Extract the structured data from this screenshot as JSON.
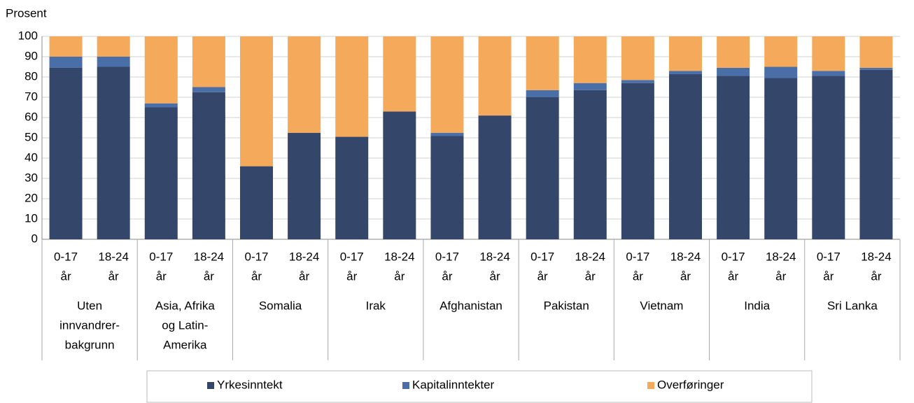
{
  "chart_data": {
    "type": "stacked_bar",
    "y_axis_label": "Prosent",
    "categories": [
      [
        "0-17",
        "år"
      ],
      [
        "18-24",
        "år"
      ],
      [
        "0-17",
        "år"
      ],
      [
        "18-24",
        "år"
      ],
      [
        "0-17",
        "år"
      ],
      [
        "18-24",
        "år"
      ],
      [
        "0-17",
        "år"
      ],
      [
        "18-24",
        "år"
      ],
      [
        "0-17",
        "år"
      ],
      [
        "18-24",
        "år"
      ],
      [
        "0-17",
        "år"
      ],
      [
        "18-24",
        "år"
      ],
      [
        "0-17",
        "år"
      ],
      [
        "18-24",
        "år"
      ],
      [
        "0-17",
        "år"
      ],
      [
        "18-24",
        "år"
      ],
      [
        "0-17",
        "år"
      ],
      [
        "18-24",
        "år"
      ]
    ],
    "groups": [
      [
        "Uten",
        "innvandrer-",
        "bakgrunn"
      ],
      [
        "Asia, Afrika",
        "og Latin-",
        "Amerika"
      ],
      [
        "Somalia"
      ],
      [
        "Irak"
      ],
      [
        "Afghanistan"
      ],
      [
        "Pakistan"
      ],
      [
        "Vietnam"
      ],
      [
        "India"
      ],
      [
        "Sri Lanka"
      ]
    ],
    "series": [
      {
        "name": "Yrkesinntekt",
        "color": "#35466b",
        "values": [
          84.5,
          85,
          65,
          72.5,
          36,
          52.5,
          50.5,
          63,
          51,
          61,
          70,
          73.5,
          77,
          81.5,
          80.5,
          79.5,
          80.5,
          83.5
        ]
      },
      {
        "name": "Kapitalinntekter",
        "color": "#4a6ea8",
        "values": [
          5.5,
          5,
          2,
          2.5,
          0,
          0,
          0,
          0,
          1.5,
          0,
          3.5,
          3.5,
          1.5,
          1.5,
          4,
          5.5,
          2.5,
          1
        ]
      },
      {
        "name": "Overføringer",
        "color": "#f5a95a",
        "values": [
          10,
          10,
          33,
          25,
          64,
          47.5,
          49.5,
          37,
          47.5,
          39,
          26.5,
          23,
          21.5,
          17,
          15.5,
          15,
          17,
          15.5
        ]
      }
    ],
    "ylim": [
      0,
      100
    ],
    "yticks": [
      0,
      10,
      20,
      30,
      40,
      50,
      60,
      70,
      80,
      90,
      100
    ],
    "grid": true
  }
}
